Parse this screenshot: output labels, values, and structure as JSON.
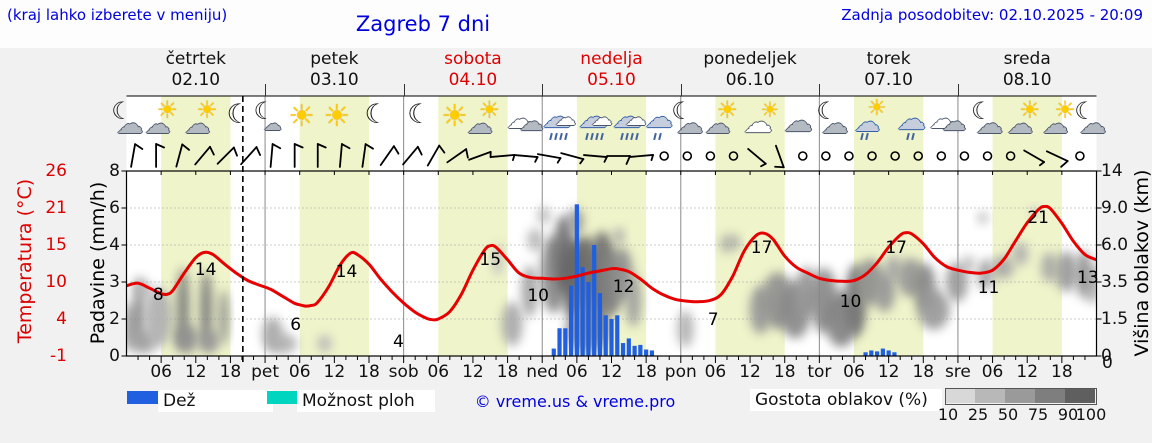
{
  "header": {
    "hint": "(kraj lahko izberete v meniju)",
    "title": "Zagreb 7 dni",
    "updated": "Zadnja posodobitev: 02.10.2025 - 20:09"
  },
  "days": [
    {
      "name": "četrtek",
      "date": "02.10",
      "highlight": false
    },
    {
      "name": "petek",
      "date": "03.10",
      "highlight": false
    },
    {
      "name": "sobota",
      "date": "04.10",
      "highlight": true
    },
    {
      "name": "nedelja",
      "date": "05.10",
      "highlight": true
    },
    {
      "name": "ponedeljek",
      "date": "06.10",
      "highlight": false
    },
    {
      "name": "torek",
      "date": "07.10",
      "highlight": false
    },
    {
      "name": "sreda",
      "date": "08.10",
      "highlight": false
    }
  ],
  "axes": {
    "temp": {
      "title": "Temperatura (°C)",
      "ticks": [
        "26",
        "21",
        "15",
        "10",
        "4",
        "-1"
      ],
      "color": "#dd0000"
    },
    "precip": {
      "title": "Padavine (mm/h)",
      "ticks": [
        "8",
        "6",
        "4",
        "3",
        "2",
        "0"
      ]
    },
    "cloud": {
      "title": "Višina oblakov (km)",
      "ticks": [
        "14",
        "9.0",
        "6.0",
        "3.5",
        "1.5",
        "0"
      ],
      "corner": "0"
    },
    "x": {
      "hour_labels": [
        "06",
        "12",
        "18"
      ],
      "day_abbrs": [
        "pet",
        "sob",
        "ned",
        "pon",
        "tor",
        "sre"
      ]
    }
  },
  "legend": {
    "rain": "Dež",
    "rain_color": "#1f5fe0",
    "showers": "Možnost ploh",
    "showers_color": "#00d5c0",
    "copyright": "© vreme.us & vreme.pro",
    "cloud_density": "Gostota oblakov (%)",
    "density_ticks": [
      "10",
      "25",
      "50",
      "75",
      "90",
      "100"
    ],
    "density_colors": [
      "#d8d8d8",
      "#b8b8b8",
      "#9a9a9a",
      "#7e7e7e",
      "#5f5f5f"
    ]
  },
  "chart_data": {
    "type": "line+bar",
    "x_unit": "hours from Thu 02.10 00:00",
    "x_range": [
      0,
      168
    ],
    "now_hour": 20.15,
    "day_band_hours": [
      6,
      18
    ],
    "scales": {
      "temp_knots": [
        26,
        21,
        15,
        10,
        4,
        -1
      ],
      "precip_knots": [
        8,
        6,
        4,
        3,
        2,
        0
      ],
      "cloudkm_knots": [
        14,
        9,
        6,
        3.5,
        1.5,
        0
      ]
    },
    "temperature": {
      "name": "Temperatura",
      "unit": "°C",
      "color": "#e60000",
      "points": [
        [
          0,
          9.4
        ],
        [
          2,
          9.8
        ],
        [
          4,
          9.0
        ],
        [
          6,
          8.1
        ],
        [
          7,
          8.0
        ],
        [
          8,
          8.6
        ],
        [
          10,
          11.2
        ],
        [
          12,
          13.3
        ],
        [
          13.5,
          14.0
        ],
        [
          15,
          13.7
        ],
        [
          17,
          12.4
        ],
        [
          19,
          11.2
        ],
        [
          21,
          10.2
        ],
        [
          23,
          9.5
        ],
        [
          25,
          8.8
        ],
        [
          27,
          7.7
        ],
        [
          29,
          6.6
        ],
        [
          30,
          6.3
        ],
        [
          31,
          6.1
        ],
        [
          32,
          6.2
        ],
        [
          33,
          6.6
        ],
        [
          35,
          9.2
        ],
        [
          37,
          12.3
        ],
        [
          38.8,
          13.9
        ],
        [
          40,
          13.7
        ],
        [
          42,
          12.4
        ],
        [
          44,
          10.4
        ],
        [
          46,
          8.4
        ],
        [
          48,
          6.6
        ],
        [
          50,
          5.1
        ],
        [
          52,
          4.1
        ],
        [
          53,
          3.9
        ],
        [
          54,
          4.0
        ],
        [
          56,
          5.2
        ],
        [
          58,
          8.0
        ],
        [
          60,
          11.6
        ],
        [
          62,
          14.3
        ],
        [
          63,
          14.9
        ],
        [
          64,
          14.7
        ],
        [
          66,
          13.0
        ],
        [
          68,
          11.2
        ],
        [
          70,
          10.6
        ],
        [
          72,
          10.5
        ],
        [
          74,
          10.4
        ],
        [
          76,
          10.5
        ],
        [
          78,
          10.8
        ],
        [
          80,
          11.2
        ],
        [
          82,
          11.5
        ],
        [
          84,
          11.8
        ],
        [
          85,
          11.8
        ],
        [
          87,
          11.4
        ],
        [
          89,
          10.4
        ],
        [
          91,
          9.0
        ],
        [
          93,
          7.9
        ],
        [
          95,
          7.2
        ],
        [
          97,
          6.9
        ],
        [
          99,
          6.8
        ],
        [
          101,
          7.0
        ],
        [
          103,
          8.0
        ],
        [
          105,
          10.8
        ],
        [
          107,
          14.2
        ],
        [
          109,
          16.5
        ],
        [
          110.5,
          16.9
        ],
        [
          112,
          15.9
        ],
        [
          114,
          13.5
        ],
        [
          116,
          12.0
        ],
        [
          118,
          11.2
        ],
        [
          120,
          10.5
        ],
        [
          122,
          10.2
        ],
        [
          124,
          10.1
        ],
        [
          126,
          10.2
        ],
        [
          128,
          11.0
        ],
        [
          130,
          12.6
        ],
        [
          132,
          14.7
        ],
        [
          134,
          16.6
        ],
        [
          135,
          17.0
        ],
        [
          136,
          16.8
        ],
        [
          138,
          15.2
        ],
        [
          140,
          13.3
        ],
        [
          142,
          12.1
        ],
        [
          144,
          11.6
        ],
        [
          146,
          11.3
        ],
        [
          148,
          11.2
        ],
        [
          150,
          11.6
        ],
        [
          152,
          13.1
        ],
        [
          154,
          15.7
        ],
        [
          156,
          18.6
        ],
        [
          158,
          20.8
        ],
        [
          159,
          21.2
        ],
        [
          160,
          20.9
        ],
        [
          162,
          18.5
        ],
        [
          164,
          15.6
        ],
        [
          166,
          13.7
        ],
        [
          168,
          13.0
        ]
      ]
    },
    "temp_labels": [
      {
        "h": 5.5,
        "v": 7.9,
        "text": "8"
      },
      {
        "h": 13.7,
        "v": 11.6,
        "text": "14"
      },
      {
        "h": 29.3,
        "v": 3.2,
        "text": "6"
      },
      {
        "h": 38.1,
        "v": 11.4,
        "text": "14"
      },
      {
        "h": 47.1,
        "v": 0.9,
        "text": "4"
      },
      {
        "h": 63.0,
        "v": 13.0,
        "text": "15"
      },
      {
        "h": 71.3,
        "v": 7.7,
        "text": "10"
      },
      {
        "h": 86.1,
        "v": 9.2,
        "text": "12"
      },
      {
        "h": 101.6,
        "v": 3.9,
        "text": "7"
      },
      {
        "h": 110.0,
        "v": 14.6,
        "text": "17"
      },
      {
        "h": 125.4,
        "v": 6.8,
        "text": "10"
      },
      {
        "h": 133.3,
        "v": 14.6,
        "text": "17"
      },
      {
        "h": 149.3,
        "v": 9.0,
        "text": "11"
      },
      {
        "h": 157.9,
        "v": 19.4,
        "text": "21"
      },
      {
        "h": 166.5,
        "v": 10.5,
        "text": "13"
      }
    ],
    "rain": {
      "name": "Dež",
      "unit": "mm/h",
      "color": "#1f5fe0",
      "bars": [
        [
          74,
          0.4
        ],
        [
          75,
          1.5
        ],
        [
          76,
          1.5
        ],
        [
          77,
          2.9
        ],
        [
          78,
          6.2
        ],
        [
          79,
          3.4
        ],
        [
          80,
          3.0
        ],
        [
          81,
          4.0
        ],
        [
          82,
          2.7
        ],
        [
          83,
          2.1
        ],
        [
          84,
          2.0
        ],
        [
          85,
          2.1
        ],
        [
          86,
          0.7
        ],
        [
          87,
          0.95
        ],
        [
          88,
          0.55
        ],
        [
          89,
          0.6
        ],
        [
          90,
          0.35
        ],
        [
          91,
          0.3
        ],
        [
          128,
          0.2
        ],
        [
          129,
          0.3
        ],
        [
          130,
          0.25
        ],
        [
          131,
          0.4
        ],
        [
          132,
          0.3
        ],
        [
          133,
          0.2
        ]
      ]
    },
    "icons": [
      {
        "h": 0.3,
        "type": "moon-cloud"
      },
      {
        "h": 6.4,
        "type": "sun-cloud"
      },
      {
        "h": 13.3,
        "type": "sun-cloud"
      },
      {
        "h": 19.4,
        "type": "moon"
      },
      {
        "h": 24.6,
        "type": "moon-cloud-sm"
      },
      {
        "h": 30.6,
        "type": "sun"
      },
      {
        "h": 36.7,
        "type": "sun"
      },
      {
        "h": 43.3,
        "type": "moon"
      },
      {
        "h": 50.7,
        "type": "moon"
      },
      {
        "h": 57.1,
        "type": "sun"
      },
      {
        "h": 62.2,
        "type": "sun-cloud"
      },
      {
        "h": 69.1,
        "type": "clouds"
      },
      {
        "h": 75.1,
        "type": "rain"
      },
      {
        "h": 81.4,
        "type": "rain"
      },
      {
        "h": 87.3,
        "type": "rain"
      },
      {
        "h": 92.4,
        "type": "rain-light"
      },
      {
        "h": 97.3,
        "type": "moon-cloud"
      },
      {
        "h": 103.4,
        "type": "sun-cloud"
      },
      {
        "h": 110.3,
        "type": "cloud-sun"
      },
      {
        "h": 116.4,
        "type": "cloud"
      },
      {
        "h": 122.4,
        "type": "moon-cloud"
      },
      {
        "h": 129.3,
        "type": "sun-drizzle"
      },
      {
        "h": 136.2,
        "type": "drizzle"
      },
      {
        "h": 142.3,
        "type": "clouds"
      },
      {
        "h": 149.2,
        "type": "moon-cloud"
      },
      {
        "h": 155.8,
        "type": "sun-cloud"
      },
      {
        "h": 161.9,
        "type": "sun-cloud"
      },
      {
        "h": 167.1,
        "type": "moon-cloud"
      }
    ],
    "wind": [
      "b:10:1",
      "b:0:1",
      "b:15:1",
      "b:40:1",
      "b:45:1",
      "b:42:1",
      "b:5:1",
      "b:0:1",
      "b:0:1",
      "b:5:1",
      "b:8:1",
      "b:35:1",
      "b:40:1",
      "b:30:1",
      "b:55:1",
      "b:70:0.5",
      "b:85:0.5",
      "b:95:0.5",
      "b:100:0.5",
      "b:105:0.5",
      "b:95:0.5",
      "b:90:1",
      "b:85:0.5",
      "c",
      "c",
      "c",
      "c",
      "b:130:0.5",
      "b:160:1",
      "c",
      "c",
      "c",
      "c",
      "c",
      "c",
      "c",
      "c",
      "c",
      "c",
      "b:120:0.5",
      "b:115:1",
      "c"
    ],
    "clouds": {
      "unit": "km (center height), density %",
      "blobs": [
        [
          0.8,
          1.2,
          1.2,
          1.1,
          55
        ],
        [
          2.2,
          1.9,
          0.9,
          1.7,
          70
        ],
        [
          3,
          0.6,
          2.2,
          0.5,
          50
        ],
        [
          5.5,
          1.6,
          2.5,
          1.4,
          40
        ],
        [
          9.8,
          2.1,
          1.1,
          2.0,
          75
        ],
        [
          10.3,
          0.7,
          2.2,
          0.6,
          60
        ],
        [
          13.8,
          2.0,
          1.1,
          1.9,
          75
        ],
        [
          14.3,
          0.6,
          1.8,
          0.5,
          55
        ],
        [
          16.8,
          1.6,
          0.8,
          1.3,
          60
        ],
        [
          2.8,
          3.1,
          1.4,
          0.5,
          35
        ],
        [
          25.3,
          0.9,
          1.8,
          0.7,
          45
        ],
        [
          27,
          0.5,
          2.6,
          0.4,
          40
        ],
        [
          34.3,
          0.5,
          1.2,
          0.35,
          35
        ],
        [
          64.3,
          5.0,
          0.4,
          1.1,
          30
        ],
        [
          66.8,
          1.3,
          1.8,
          1.0,
          45
        ],
        [
          69.8,
          3.0,
          1.4,
          1.5,
          50
        ],
        [
          70.8,
          6.4,
          1.4,
          0.9,
          35
        ],
        [
          72.3,
          8.4,
          1.1,
          0.7,
          35
        ],
        [
          74,
          4,
          2.3,
          2.4,
          65
        ],
        [
          75.8,
          5.4,
          1.9,
          2.7,
          80
        ],
        [
          77.4,
          3.6,
          2.1,
          2.4,
          88
        ],
        [
          79.4,
          4.4,
          2.4,
          2.1,
          85
        ],
        [
          80.8,
          2.4,
          2.8,
          1.9,
          75
        ],
        [
          82.4,
          4.4,
          2.4,
          2.4,
          80
        ],
        [
          83.8,
          3.4,
          2.4,
          1.9,
          70
        ],
        [
          85.8,
          4.0,
          1.9,
          1.7,
          60
        ],
        [
          77.8,
          7.9,
          1.4,
          1.1,
          55
        ],
        [
          79.8,
          1.0,
          3.8,
          0.9,
          65
        ],
        [
          87.8,
          2.5,
          1.4,
          1.4,
          50
        ],
        [
          85.3,
          6.7,
          0.9,
          0.7,
          45
        ],
        [
          96.8,
          1.1,
          1.4,
          0.8,
          40
        ],
        [
          103.8,
          6.1,
          0.4,
          0.7,
          45
        ],
        [
          105.3,
          6.2,
          0.5,
          0.6,
          50
        ],
        [
          109.8,
          2.0,
          1.9,
          1.2,
          55
        ],
        [
          112.8,
          2.5,
          2.8,
          1.5,
          60
        ],
        [
          115.8,
          2.0,
          2.8,
          1.4,
          65
        ],
        [
          117.8,
          3.0,
          1.9,
          1.4,
          55
        ],
        [
          120.8,
          2.5,
          2.4,
          1.7,
          65
        ],
        [
          123.8,
          1.5,
          2.8,
          1.3,
          70
        ],
        [
          126.3,
          2.5,
          1.9,
          1.9,
          78
        ],
        [
          128.8,
          3.5,
          2.4,
          1.4,
          60
        ],
        [
          131.3,
          3.0,
          1.9,
          1.2,
          55
        ],
        [
          132.8,
          4.4,
          1.4,
          0.9,
          45
        ],
        [
          135.8,
          3.8,
          2.4,
          1.2,
          55
        ],
        [
          138.3,
          3.2,
          1.9,
          1.4,
          65
        ],
        [
          139.8,
          2.0,
          2.8,
          1.0,
          55
        ],
        [
          143.8,
          3.5,
          1.9,
          1.2,
          55
        ],
        [
          145.8,
          4.7,
          0.9,
          0.6,
          40
        ],
        [
          148.3,
          8.2,
          0.6,
          0.5,
          35
        ],
        [
          148.8,
          4.0,
          1.4,
          1.0,
          50
        ],
        [
          151.8,
          4.5,
          1.9,
          0.8,
          45
        ],
        [
          154.8,
          5.4,
          1.4,
          0.8,
          40
        ],
        [
          157.3,
          8.7,
          0.7,
          0.4,
          30
        ],
        [
          159.8,
          4.5,
          1.4,
          1.0,
          45
        ],
        [
          162.8,
          4.2,
          1.9,
          1.3,
          55
        ],
        [
          165.8,
          4.0,
          1.4,
          1.5,
          60
        ],
        [
          167.3,
          3.4,
          0.9,
          1.2,
          55
        ]
      ]
    }
  }
}
